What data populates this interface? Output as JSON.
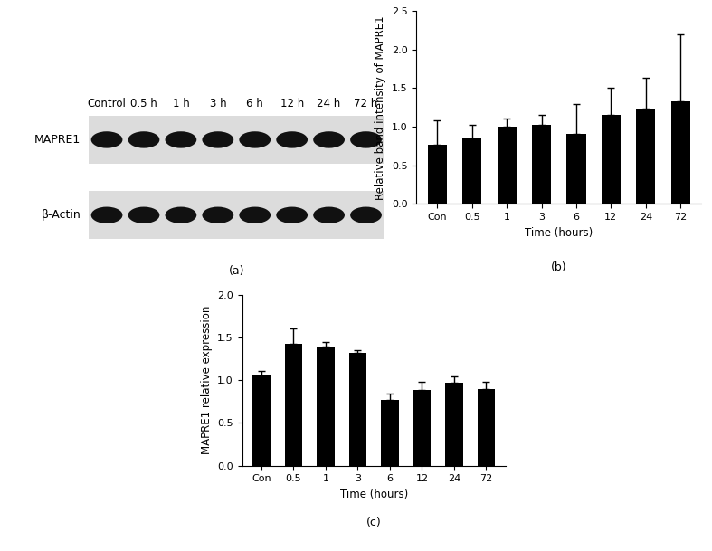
{
  "blot": {
    "panel": "(a)",
    "lanes": [
      "Control",
      "0.5 h",
      "1 h",
      "3 h",
      "6 h",
      "12 h",
      "24 h",
      "72 h"
    ],
    "rows": [
      "MAPRE1",
      "β-Actin"
    ]
  },
  "chart_data": [
    {
      "type": "bar",
      "panel": "(b)",
      "categories": [
        "Con",
        "0.5",
        "1",
        "3",
        "6",
        "12",
        "24",
        "72"
      ],
      "values": [
        0.77,
        0.85,
        1.0,
        1.02,
        0.91,
        1.15,
        1.23,
        1.33
      ],
      "error": [
        0.31,
        0.17,
        0.11,
        0.13,
        0.38,
        0.35,
        0.4,
        0.87
      ],
      "color": "#000000",
      "x_label": "Time (hours)",
      "y_label": "Relative band intensity of MAPRE1",
      "ylim": [
        0,
        2.5
      ],
      "yticks": [
        {
          "value": 0,
          "label": "0.0"
        },
        0.5,
        {
          "value": 1,
          "label": "1.0"
        },
        1.5,
        {
          "value": 2,
          "label": "2.0"
        },
        2.5
      ]
    },
    {
      "type": "bar",
      "panel": "(c)",
      "categories": [
        "Con",
        "0.5",
        "1",
        "3",
        "6",
        "12",
        "24",
        "72"
      ],
      "values": [
        1.05,
        1.43,
        1.39,
        1.32,
        0.77,
        0.89,
        0.97,
        0.9
      ],
      "error": [
        0.06,
        0.18,
        0.06,
        0.03,
        0.07,
        0.09,
        0.07,
        0.08
      ],
      "color": "#000000",
      "x_label": "Time (hours)",
      "y_label": "MAPRE1 relative expression",
      "ylim": [
        0,
        2.0
      ],
      "yticks": [
        {
          "value": 0,
          "label": "0.0"
        },
        0.5,
        {
          "value": 1,
          "label": "1.0"
        },
        1.5,
        {
          "value": 2,
          "label": "2.0"
        }
      ]
    }
  ]
}
